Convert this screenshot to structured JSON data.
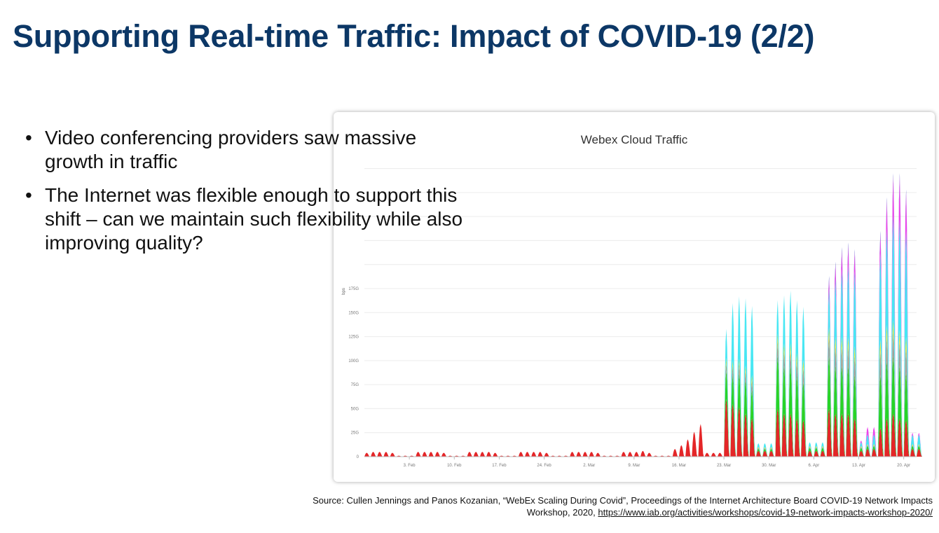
{
  "slide": {
    "title": "Supporting Real-time Traffic: Impact of COVID-19 (2/2)",
    "bullets": [
      "Video conferencing providers saw massive growth in traffic",
      "The Internet was flexible enough to support this shift – can we maintain such flexibility while also improving quality?"
    ],
    "bullet_glyph": "•",
    "source_text": "Source: Cullen Jennings and Panos Kozanian, “WebEx Scaling During Covid”, Proceedings of the Internet Architecture Board COVID-19 Network Impacts Workshop, 2020,",
    "source_link": "https://www.iab.org/activities/workshops/covid-19-network-impacts-workshop-2020/"
  },
  "chart_data": {
    "type": "area",
    "title": "Webex Cloud Traffic",
    "ylabel": "bps",
    "ylim": [
      0,
      175
    ],
    "grid": true,
    "legend": "none",
    "y_ticks": [
      "0",
      "25G",
      "50G",
      "75G",
      "100G",
      "125G",
      "150G",
      "175G"
    ],
    "x_ticks": [
      "3. Feb",
      "10. Feb",
      "17. Feb",
      "24. Feb",
      "2. Mar",
      "9. Mar",
      "16. Mar",
      "23. Mar",
      "30. Mar",
      "6. Apr",
      "13. Apr",
      "20. Apr"
    ],
    "x_range_days": [
      0,
      86
    ],
    "x_tick_days": [
      7,
      14,
      21,
      28,
      35,
      42,
      49,
      56,
      63,
      70,
      77,
      84
    ],
    "series_colors": [
      "#e31a1c",
      "#1bd21b",
      "#9a9a9a",
      "#f2e43a",
      "#3ee6f2",
      "#ea3bea",
      "#2323b8"
    ],
    "series": [
      {
        "values": [
          4,
          5,
          5,
          5,
          4,
          1,
          1,
          1,
          5,
          5,
          5,
          5,
          4,
          1,
          1,
          1,
          5,
          5,
          5,
          5,
          4,
          1,
          1,
          1,
          5,
          5,
          5,
          5,
          4,
          1,
          1,
          1,
          5,
          5,
          5,
          5,
          4,
          1,
          1,
          1,
          5,
          5,
          5,
          6,
          4,
          1,
          1,
          1,
          8,
          12,
          18,
          26,
          34,
          4,
          4,
          4,
          60,
          55,
          52,
          45,
          40,
          6,
          6,
          6,
          50,
          45,
          45,
          40,
          38,
          6,
          6,
          6,
          50,
          45,
          45,
          45,
          40,
          6,
          8,
          8,
          30,
          40,
          45,
          40,
          38,
          8,
          8
        ]
      },
      {
        "values": [
          0,
          0,
          0,
          0,
          0,
          0,
          0,
          0,
          0,
          0,
          0,
          0,
          0,
          0,
          0,
          0,
          0,
          0,
          0,
          0,
          0,
          0,
          0,
          0,
          0,
          0,
          0,
          0,
          0,
          0,
          0,
          0,
          0,
          0,
          0,
          0,
          0,
          0,
          0,
          0,
          0,
          0,
          0,
          0,
          0,
          0,
          0,
          0,
          0,
          0,
          0,
          0,
          0,
          0,
          0,
          0,
          30,
          30,
          35,
          35,
          30,
          2,
          2,
          2,
          55,
          50,
          50,
          45,
          40,
          3,
          3,
          3,
          55,
          50,
          50,
          50,
          45,
          3,
          3,
          3,
          55,
          60,
          60,
          55,
          50,
          3,
          3
        ]
      },
      {
        "values": [
          0,
          0,
          0,
          0,
          0,
          0,
          0,
          0,
          0,
          0,
          0,
          0,
          0,
          0,
          0,
          0,
          0,
          0,
          0,
          0,
          0,
          0,
          0,
          0,
          0,
          0,
          0,
          0,
          0,
          0,
          0,
          0,
          0,
          0,
          0,
          0,
          0,
          0,
          0,
          0,
          0,
          0,
          0,
          0,
          0,
          0,
          0,
          0,
          0,
          0,
          0,
          0,
          0,
          0,
          0,
          0,
          8,
          10,
          10,
          10,
          10,
          1,
          1,
          1,
          15,
          15,
          15,
          15,
          15,
          1,
          1,
          1,
          20,
          20,
          20,
          20,
          20,
          1,
          1,
          1,
          25,
          25,
          25,
          25,
          25,
          1,
          1
        ]
      },
      {
        "values": [
          0,
          0,
          0,
          0,
          0,
          0,
          0,
          0,
          0,
          0,
          0,
          0,
          0,
          0,
          0,
          0,
          0,
          0,
          0,
          0,
          0,
          0,
          0,
          0,
          0,
          0,
          0,
          0,
          0,
          0,
          0,
          0,
          0,
          0,
          0,
          0,
          0,
          0,
          0,
          0,
          0,
          0,
          0,
          0,
          0,
          0,
          0,
          0,
          0,
          0,
          0,
          0,
          0,
          0,
          0,
          0,
          5,
          5,
          5,
          5,
          5,
          1,
          1,
          1,
          8,
          8,
          8,
          8,
          8,
          1,
          1,
          1,
          10,
          10,
          10,
          10,
          10,
          1,
          1,
          1,
          12,
          12,
          12,
          12,
          12,
          1,
          1
        ]
      },
      {
        "values": [
          0,
          0,
          0,
          0,
          0,
          0,
          0,
          0,
          0,
          0,
          0,
          0,
          0,
          0,
          0,
          0,
          0,
          0,
          0,
          0,
          0,
          0,
          0,
          0,
          0,
          0,
          0,
          0,
          0,
          0,
          0,
          0,
          0,
          0,
          0,
          0,
          0,
          0,
          0,
          0,
          0,
          0,
          0,
          0,
          0,
          0,
          0,
          0,
          0,
          0,
          0,
          0,
          0,
          0,
          0,
          0,
          30,
          60,
          65,
          70,
          72,
          4,
          4,
          4,
          35,
          50,
          55,
          55,
          55,
          4,
          4,
          4,
          40,
          60,
          70,
          75,
          78,
          4,
          10,
          10,
          90,
          100,
          110,
          115,
          110,
          10,
          10
        ]
      },
      {
        "values": [
          0,
          0,
          0,
          0,
          0,
          0,
          0,
          0,
          0,
          0,
          0,
          0,
          0,
          0,
          0,
          0,
          0,
          0,
          0,
          0,
          0,
          0,
          0,
          0,
          0,
          0,
          0,
          0,
          0,
          0,
          0,
          0,
          0,
          0,
          0,
          0,
          0,
          0,
          0,
          0,
          0,
          0,
          0,
          0,
          0,
          0,
          0,
          0,
          0,
          0,
          0,
          0,
          0,
          0,
          0,
          0,
          0,
          0,
          0,
          0,
          0,
          0,
          0,
          0,
          0,
          0,
          0,
          0,
          0,
          0,
          0,
          0,
          10,
          15,
          20,
          20,
          20,
          2,
          8,
          8,
          20,
          30,
          40,
          45,
          40,
          2,
          2
        ]
      },
      {
        "values": [
          0,
          0,
          0,
          0,
          0,
          0,
          0,
          0,
          0,
          0,
          0,
          0,
          0,
          0,
          0,
          0,
          0,
          0,
          0,
          0,
          0,
          0,
          0,
          0,
          0,
          0,
          0,
          0,
          0,
          0,
          0,
          0,
          0,
          0,
          0,
          0,
          0,
          0,
          0,
          0,
          0,
          0,
          0,
          0,
          0,
          0,
          0,
          0,
          0,
          0,
          0,
          0,
          0,
          0,
          0,
          0,
          0,
          0,
          0,
          0,
          0,
          0,
          0,
          0,
          0,
          0,
          0,
          0,
          0,
          0,
          0,
          0,
          3,
          3,
          3,
          3,
          3,
          0,
          0,
          0,
          3,
          3,
          3,
          3,
          3,
          0,
          0
        ]
      }
    ]
  }
}
